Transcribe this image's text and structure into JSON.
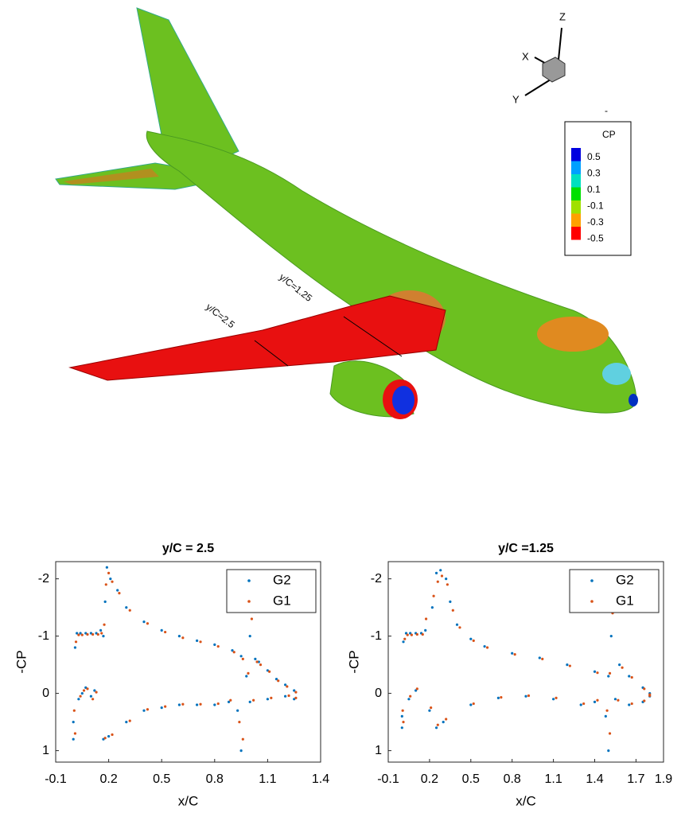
{
  "figure": {
    "section_labels": [
      "y/C=2.5",
      "y/C=1.25"
    ],
    "triad": {
      "x": "X",
      "y": "Y",
      "z": "Z"
    },
    "dash": "-",
    "colorbar": {
      "title": "CP",
      "ticks": [
        0.5,
        0.3,
        0.1,
        -0.1,
        -0.3,
        -0.5
      ],
      "colors": [
        "#0000e0",
        "#00a0ff",
        "#00e0c0",
        "#00e000",
        "#a0e000",
        "#ffa000",
        "#ff0000"
      ]
    }
  },
  "chart_data": [
    {
      "type": "scatter",
      "title": "y/C = 2.5",
      "x_label": "x/C",
      "y_label": "-CP",
      "xlim": [
        -0.1,
        1.4
      ],
      "xticks": [
        -0.1,
        0.2,
        0.5,
        0.8,
        1.1,
        1.4
      ],
      "ylim": [
        1.2,
        -2.3
      ],
      "yticks": [
        -2,
        -1,
        0,
        1
      ],
      "y_reversed": true,
      "legend": "upper right",
      "series": [
        {
          "name": "G2",
          "color": "#0072bd",
          "x": [
            0.0,
            0.01,
            0.02,
            0.04,
            0.07,
            0.1,
            0.13,
            0.155,
            0.17,
            0.18,
            0.19,
            0.21,
            0.25,
            0.3,
            0.4,
            0.5,
            0.6,
            0.7,
            0.8,
            0.9,
            0.95,
            0.98,
            1.0,
            1.03,
            1.05,
            1.1,
            1.15,
            1.2,
            1.25,
            0.0,
            0.03,
            0.05,
            0.07,
            0.1,
            0.12,
            0.17,
            0.2,
            0.3,
            0.4,
            0.5,
            0.6,
            0.7,
            0.8,
            0.88,
            0.93,
            0.95,
            1.0,
            1.1,
            1.2,
            1.25
          ],
          "y": [
            0.5,
            -0.8,
            -1.05,
            -1.05,
            -1.05,
            -1.05,
            -1.05,
            -1.1,
            -1.0,
            -1.6,
            -2.2,
            -2.0,
            -1.8,
            -1.5,
            -1.25,
            -1.1,
            -1.0,
            -0.92,
            -0.85,
            -0.75,
            -0.65,
            -0.3,
            -1.0,
            -0.6,
            -0.55,
            -0.4,
            -0.25,
            -0.15,
            -0.05,
            0.8,
            0.1,
            0.0,
            -0.1,
            0.05,
            -0.05,
            0.8,
            0.75,
            0.5,
            0.3,
            0.25,
            0.2,
            0.2,
            0.2,
            0.15,
            0.3,
            1.0,
            0.15,
            0.1,
            0.05,
            0.1
          ]
        },
        {
          "name": "G1",
          "color": "#d95319",
          "x": [
            0.005,
            0.015,
            0.03,
            0.05,
            0.08,
            0.11,
            0.14,
            0.16,
            0.175,
            0.185,
            0.2,
            0.22,
            0.26,
            0.32,
            0.42,
            0.52,
            0.62,
            0.72,
            0.82,
            0.91,
            0.96,
            0.99,
            1.01,
            1.04,
            1.06,
            1.11,
            1.16,
            1.21,
            1.26,
            0.01,
            0.04,
            0.06,
            0.08,
            0.11,
            0.13,
            0.18,
            0.22,
            0.32,
            0.42,
            0.52,
            0.62,
            0.72,
            0.82,
            0.89,
            0.94,
            0.96,
            1.02,
            1.12,
            1.22,
            1.26
          ],
          "y": [
            0.3,
            -0.9,
            -1.02,
            -1.02,
            -1.03,
            -1.03,
            -1.03,
            -1.05,
            -1.2,
            -1.9,
            -2.1,
            -1.95,
            -1.75,
            -1.45,
            -1.22,
            -1.07,
            -0.97,
            -0.9,
            -0.82,
            -0.72,
            -0.6,
            -0.35,
            -1.3,
            -0.55,
            -0.5,
            -0.38,
            -0.22,
            -0.12,
            -0.02,
            0.7,
            0.05,
            -0.05,
            -0.08,
            0.1,
            -0.02,
            0.78,
            0.72,
            0.48,
            0.28,
            0.23,
            0.19,
            0.19,
            0.18,
            0.12,
            0.5,
            0.8,
            0.12,
            0.08,
            0.04,
            0.08
          ]
        }
      ]
    },
    {
      "type": "scatter",
      "title": "y/C =1.25",
      "x_label": "x/C",
      "y_label": "-CP",
      "xlim": [
        -0.1,
        1.9
      ],
      "xticks": [
        -0.1,
        0.2,
        0.5,
        0.8,
        1.1,
        1.4,
        1.7,
        1.9
      ],
      "ylim": [
        1.2,
        -2.3
      ],
      "yticks": [
        -2,
        -1,
        0,
        1
      ],
      "y_reversed": true,
      "legend": "upper right",
      "series": [
        {
          "name": "G2",
          "color": "#0072bd",
          "x": [
            0.0,
            0.01,
            0.03,
            0.06,
            0.1,
            0.14,
            0.17,
            0.22,
            0.25,
            0.28,
            0.32,
            0.35,
            0.4,
            0.5,
            0.6,
            0.8,
            1.0,
            1.2,
            1.4,
            1.5,
            1.52,
            1.58,
            1.65,
            1.75,
            1.8,
            0.0,
            0.05,
            0.1,
            0.2,
            0.25,
            0.3,
            0.5,
            0.7,
            0.9,
            1.1,
            1.3,
            1.4,
            1.48,
            1.5,
            1.55,
            1.65,
            1.75,
            1.8
          ],
          "y": [
            0.4,
            -0.9,
            -1.05,
            -1.05,
            -1.05,
            -1.05,
            -1.1,
            -1.5,
            -2.1,
            -2.15,
            -2.0,
            -1.6,
            -1.2,
            -0.95,
            -0.82,
            -0.7,
            -0.62,
            -0.5,
            -0.38,
            -0.3,
            -1.0,
            -0.5,
            -0.3,
            -0.1,
            0.0,
            0.6,
            0.1,
            -0.05,
            0.3,
            0.6,
            0.5,
            0.2,
            0.08,
            0.05,
            0.1,
            0.2,
            0.15,
            0.4,
            1.0,
            0.1,
            0.2,
            0.15,
            0.05
          ]
        },
        {
          "name": "G1",
          "color": "#d95319",
          "x": [
            0.005,
            0.02,
            0.04,
            0.07,
            0.11,
            0.15,
            0.175,
            0.23,
            0.26,
            0.29,
            0.33,
            0.37,
            0.42,
            0.52,
            0.62,
            0.82,
            1.02,
            1.22,
            1.42,
            1.51,
            1.53,
            1.6,
            1.67,
            1.76,
            1.8,
            0.01,
            0.06,
            0.11,
            0.21,
            0.26,
            0.32,
            0.52,
            0.72,
            0.92,
            1.12,
            1.32,
            1.42,
            1.49,
            1.51,
            1.57,
            1.67,
            1.76,
            1.8
          ],
          "y": [
            0.3,
            -0.95,
            -1.02,
            -1.02,
            -1.03,
            -1.03,
            -1.3,
            -1.7,
            -1.95,
            -2.05,
            -1.9,
            -1.45,
            -1.15,
            -0.92,
            -0.8,
            -0.68,
            -0.6,
            -0.48,
            -0.36,
            -0.35,
            -1.4,
            -0.45,
            -0.28,
            -0.08,
            0.02,
            0.5,
            0.05,
            -0.08,
            0.25,
            0.55,
            0.45,
            0.18,
            0.07,
            0.04,
            0.08,
            0.18,
            0.12,
            0.3,
            0.7,
            0.12,
            0.18,
            0.13,
            0.04
          ]
        }
      ]
    }
  ]
}
